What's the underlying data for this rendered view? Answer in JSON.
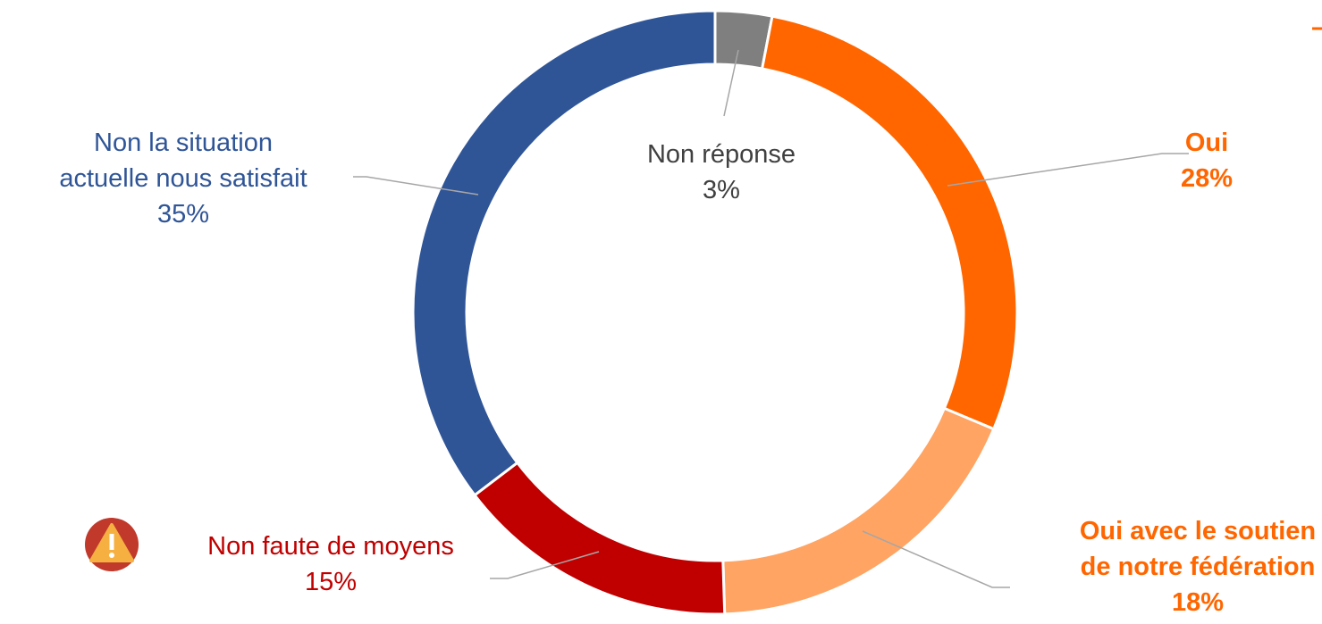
{
  "chart_data": {
    "type": "donut",
    "categories": [
      "Non réponse",
      "Oui",
      "Oui avec le soutien\nde notre fédération",
      "Non faute de moyens",
      "Non la situation\nactuelle nous satisfait"
    ],
    "values": [
      3,
      28,
      18,
      15,
      35
    ],
    "value_labels": [
      "3%",
      "28%",
      "18%",
      "15%",
      "35%"
    ],
    "colors": [
      "#7f7f7f",
      "#ff6600",
      "#ffa463",
      "#c00000",
      "#2f5597"
    ]
  }
}
